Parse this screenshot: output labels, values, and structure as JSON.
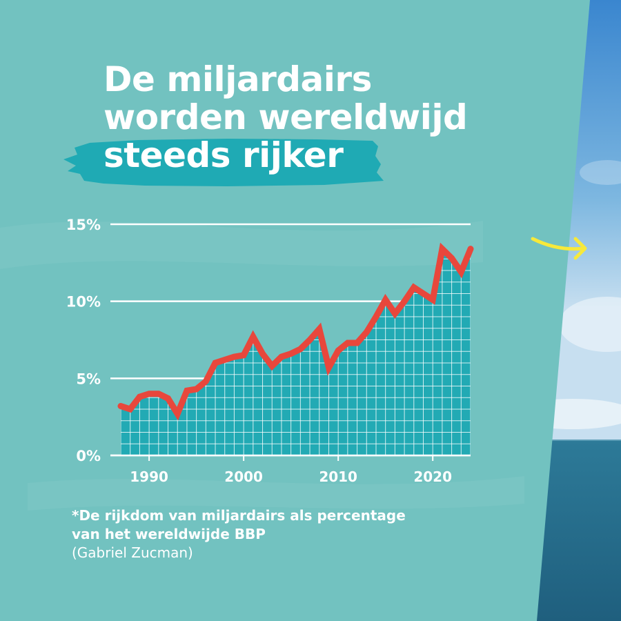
{
  "colors": {
    "background": "#72c2c0",
    "title_highlight": "#1faab4",
    "area_fill": "#22aab4",
    "line": "#e8473c",
    "arrow": "#f7e93a",
    "text": "#ffffff"
  },
  "title": {
    "lines": [
      "De miljardairs",
      "worden wereldwijd",
      "steeds rijker"
    ]
  },
  "footnote": {
    "line1": "*De rijkdom van miljardairs als percentage",
    "line2_bold": "van het wereldwijde BBP",
    "line2_source": "(Gabriel Zucman)"
  },
  "decorations": {
    "next_arrow_icon": "right-arrow-icon",
    "photo": "sky-and-sea-photo"
  },
  "chart_data": {
    "type": "area",
    "x": [
      1987,
      1988,
      1989,
      1990,
      1991,
      1992,
      1993,
      1994,
      1995,
      1996,
      1997,
      1998,
      1999,
      2000,
      2001,
      2002,
      2003,
      2004,
      2005,
      2006,
      2007,
      2008,
      2009,
      2010,
      2011,
      2012,
      2013,
      2014,
      2015,
      2016,
      2017,
      2018,
      2019,
      2020,
      2021,
      2022,
      2023,
      2024
    ],
    "series": [
      {
        "values": [
          3.2,
          3.0,
          3.8,
          4.0,
          4.0,
          3.7,
          2.7,
          4.2,
          4.3,
          4.8,
          6.0,
          6.2,
          6.4,
          6.5,
          7.7,
          6.6,
          5.8,
          6.4,
          6.6,
          6.9,
          7.5,
          8.2,
          5.7,
          6.8,
          7.3,
          7.3,
          8.0,
          9.0,
          10.1,
          9.2,
          10.0,
          10.9,
          10.5,
          10.1,
          13.4,
          12.8,
          11.9,
          13.4
        ]
      }
    ],
    "x_ticks": [
      1990,
      2000,
      2010,
      2020
    ],
    "x_tick_labels": [
      "1990",
      "2000",
      "2010",
      "2020"
    ],
    "y_ticks": [
      0,
      5,
      10,
      15
    ],
    "y_tick_labels": [
      "0%",
      "5%",
      "10%",
      "15%"
    ],
    "xlim": [
      1987,
      2024
    ],
    "ylim": [
      0,
      15
    ],
    "grid": true,
    "title": "",
    "xlabel": "",
    "ylabel": ""
  }
}
